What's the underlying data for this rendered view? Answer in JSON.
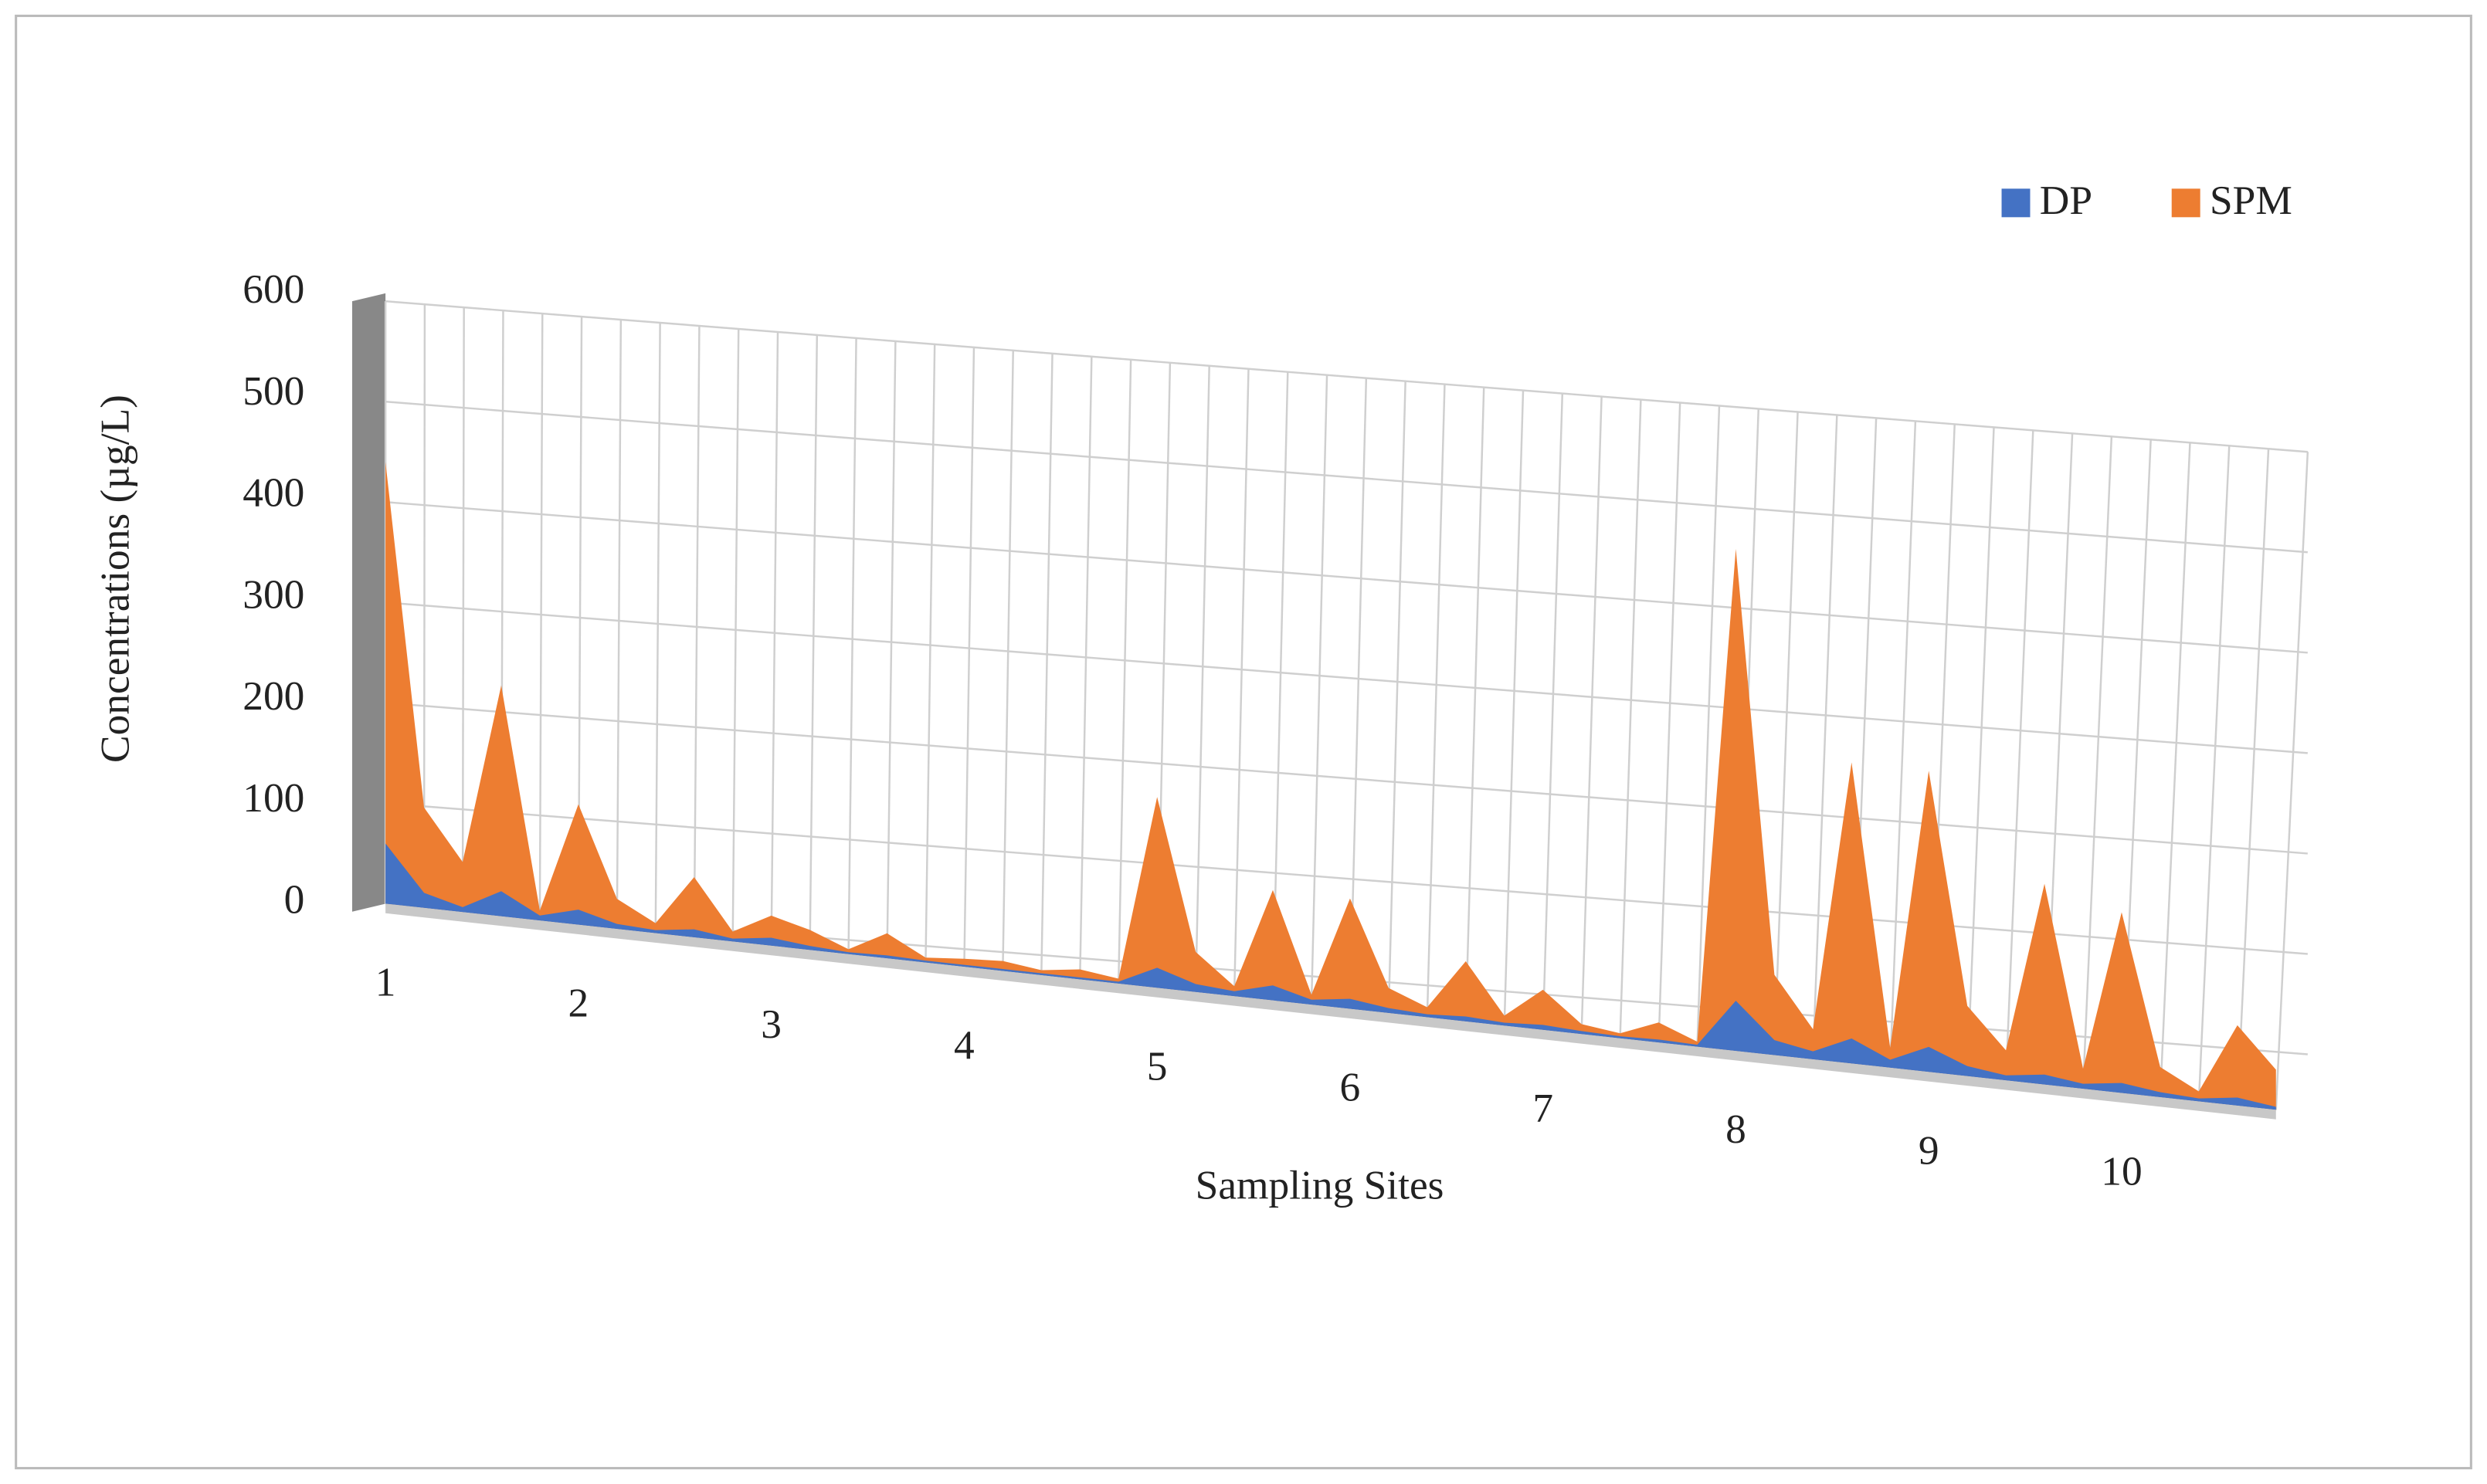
{
  "chart_data": {
    "type": "area3d",
    "x_label": "Sampling Sites",
    "y_label": "Concentrations (µg/L)",
    "categories": [
      "1",
      null,
      null,
      null,
      null,
      "2",
      null,
      null,
      null,
      null,
      "3",
      null,
      null,
      null,
      null,
      "4",
      null,
      null,
      null,
      null,
      "5",
      null,
      null,
      null,
      null,
      "6",
      null,
      null,
      null,
      null,
      "7",
      null,
      null,
      null,
      null,
      "8",
      null,
      null,
      null,
      null,
      "9",
      null,
      null,
      null,
      null,
      "10",
      null,
      null,
      null,
      null
    ],
    "series": [
      {
        "name": "DP",
        "color": "#4472c4",
        "values": [
          60,
          15,
          5,
          25,
          5,
          15,
          5,
          3,
          8,
          3,
          8,
          4,
          2,
          3,
          2,
          2,
          2,
          2,
          2,
          2,
          20,
          8,
          5,
          15,
          5,
          10,
          5,
          3,
          5,
          3,
          5,
          3,
          2,
          3,
          2,
          50,
          15,
          8,
          25,
          8,
          25,
          10,
          5,
          10,
          5,
          10,
          5,
          3,
          8,
          3
        ]
      },
      {
        "name": "SPM",
        "color": "#ed7d31",
        "values": [
          440,
          100,
          50,
          230,
          10,
          120,
          30,
          10,
          60,
          10,
          30,
          20,
          5,
          25,
          5,
          8,
          10,
          5,
          10,
          5,
          190,
          40,
          10,
          110,
          10,
          110,
          25,
          10,
          60,
          10,
          40,
          10,
          5,
          20,
          5,
          500,
          80,
          30,
          300,
          20,
          300,
          70,
          30,
          200,
          20,
          180,
          30,
          10,
          80,
          40
        ]
      }
    ],
    "ylim": [
      0,
      600
    ],
    "yticks": [
      0,
      100,
      200,
      300,
      400,
      500,
      600
    ],
    "grid": true,
    "legend": "top-right"
  }
}
